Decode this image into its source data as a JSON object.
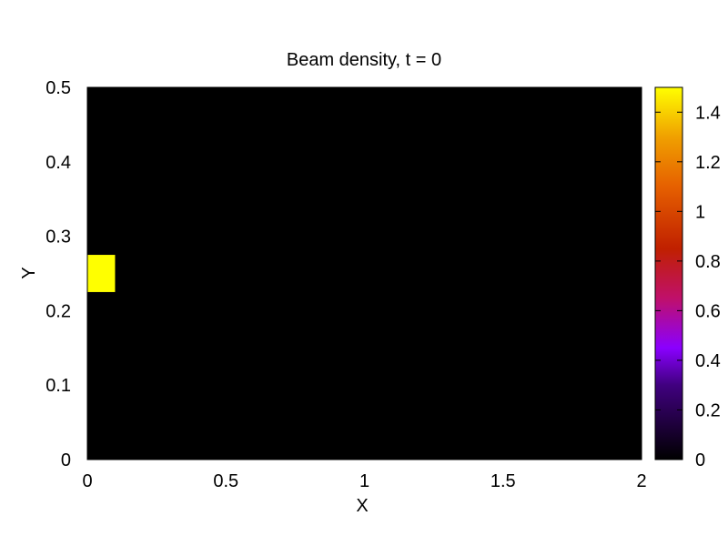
{
  "chart_data": {
    "type": "heatmap",
    "title": "Beam density, t = 0",
    "xlabel": "X",
    "ylabel": "Y",
    "xlim": [
      0,
      2
    ],
    "ylim": [
      0,
      0.5
    ],
    "x_ticks": [
      0,
      0.5,
      1,
      1.5,
      2
    ],
    "x_tick_labels": [
      "0",
      "0.5",
      "1",
      "1.5",
      "2"
    ],
    "y_ticks": [
      0,
      0.1,
      0.2,
      0.3,
      0.4,
      0.5
    ],
    "y_tick_labels": [
      "0",
      "0.1",
      "0.2",
      "0.3",
      "0.4",
      "0.5"
    ],
    "background_value": 0,
    "regions": [
      {
        "x_range": [
          0,
          0.1
        ],
        "y_range": [
          0.225,
          0.275
        ],
        "value": 1.5
      }
    ],
    "colorbar": {
      "range": [
        0,
        1.5
      ],
      "ticks": [
        0,
        0.2,
        0.4,
        0.6,
        0.8,
        1,
        1.2,
        1.4
      ],
      "tick_labels": [
        "0",
        "0.2",
        "0.4",
        "0.6",
        "0.8",
        "1",
        "1.2",
        "1.4"
      ],
      "colormap": "black-blue-purple-red-orange-yellow",
      "color_stops": [
        {
          "value": 0,
          "color": "#000000"
        },
        {
          "value": 0.3,
          "color": "#40007f"
        },
        {
          "value": 0.45,
          "color": "#8a00ff"
        },
        {
          "value": 0.65,
          "color": "#c0106a"
        },
        {
          "value": 0.85,
          "color": "#c02000"
        },
        {
          "value": 1.1,
          "color": "#e66000"
        },
        {
          "value": 1.3,
          "color": "#f0a000"
        },
        {
          "value": 1.5,
          "color": "#ffff00"
        }
      ]
    },
    "grid": false
  }
}
